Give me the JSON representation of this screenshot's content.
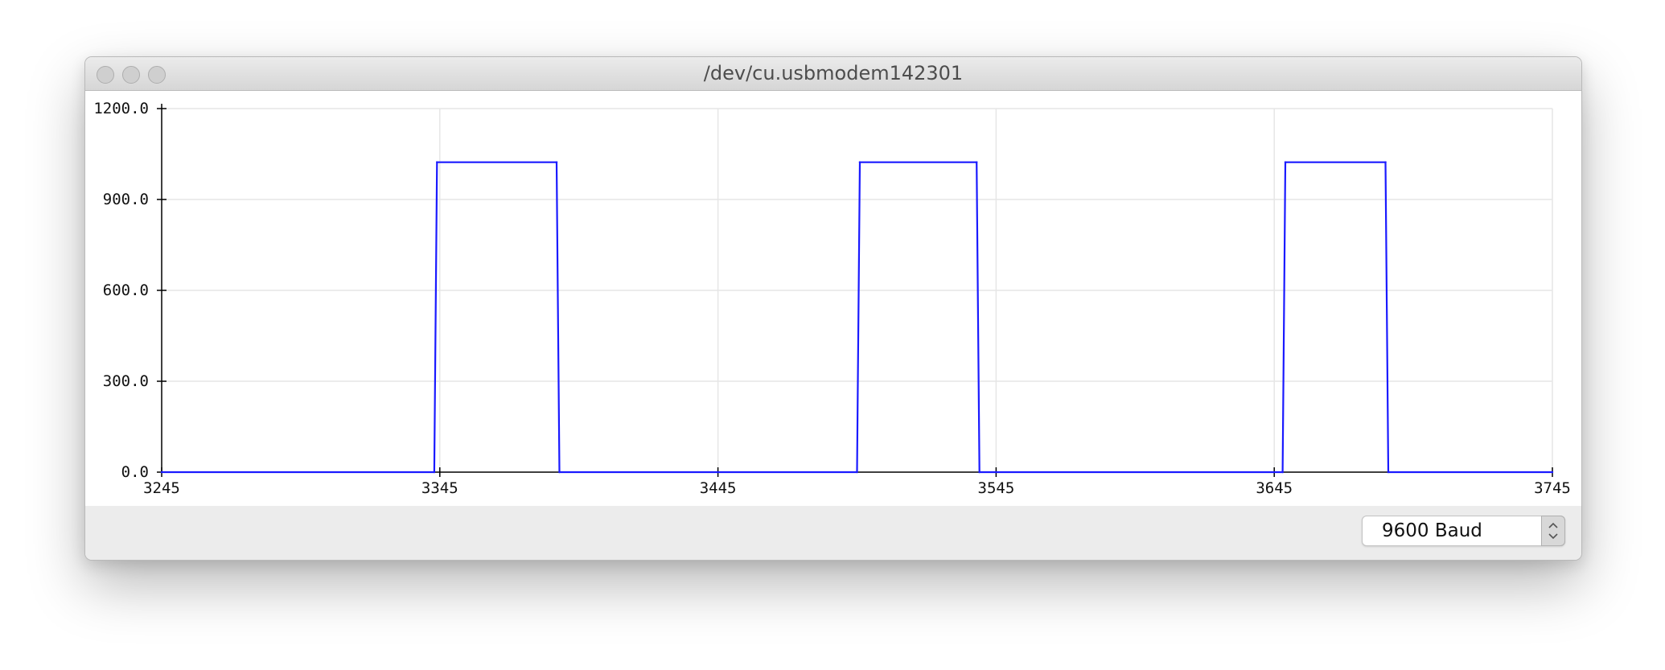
{
  "window": {
    "title": "/dev/cu.usbmodem142301"
  },
  "controls": {
    "close_icon": "close-icon",
    "minimize_icon": "minimize-icon",
    "zoom_icon": "zoom-icon",
    "baud_rate": "9600 Baud",
    "baud_stepper_icon": "up-down-chevron-icon"
  },
  "colors": {
    "series": "#1a1aff",
    "grid": "#e6e6e6",
    "axis": "#000000"
  },
  "chart_data": {
    "type": "line",
    "title": "",
    "xlabel": "",
    "ylabel": "",
    "xlim": [
      3245,
      3745
    ],
    "ylim": [
      0,
      1200
    ],
    "grid": true,
    "x_ticks": [
      "3245",
      "3345",
      "3445",
      "3545",
      "3645",
      "3745"
    ],
    "x_tick_values": [
      3245,
      3345,
      3445,
      3545,
      3645,
      3745
    ],
    "y_ticks": [
      "0.0",
      "300.0",
      "600.0",
      "900.0",
      "1200.0"
    ],
    "y_tick_values": [
      0,
      300,
      600,
      900,
      1200
    ],
    "series": [
      {
        "x": [
          3245,
          3343,
          3344,
          3387,
          3388,
          3495,
          3496,
          3538,
          3539,
          3648,
          3649,
          3685,
          3686,
          3745
        ],
        "y": [
          0,
          0,
          1023,
          1023,
          0,
          0,
          1023,
          1023,
          0,
          0,
          1023,
          1023,
          0,
          0
        ]
      }
    ]
  }
}
